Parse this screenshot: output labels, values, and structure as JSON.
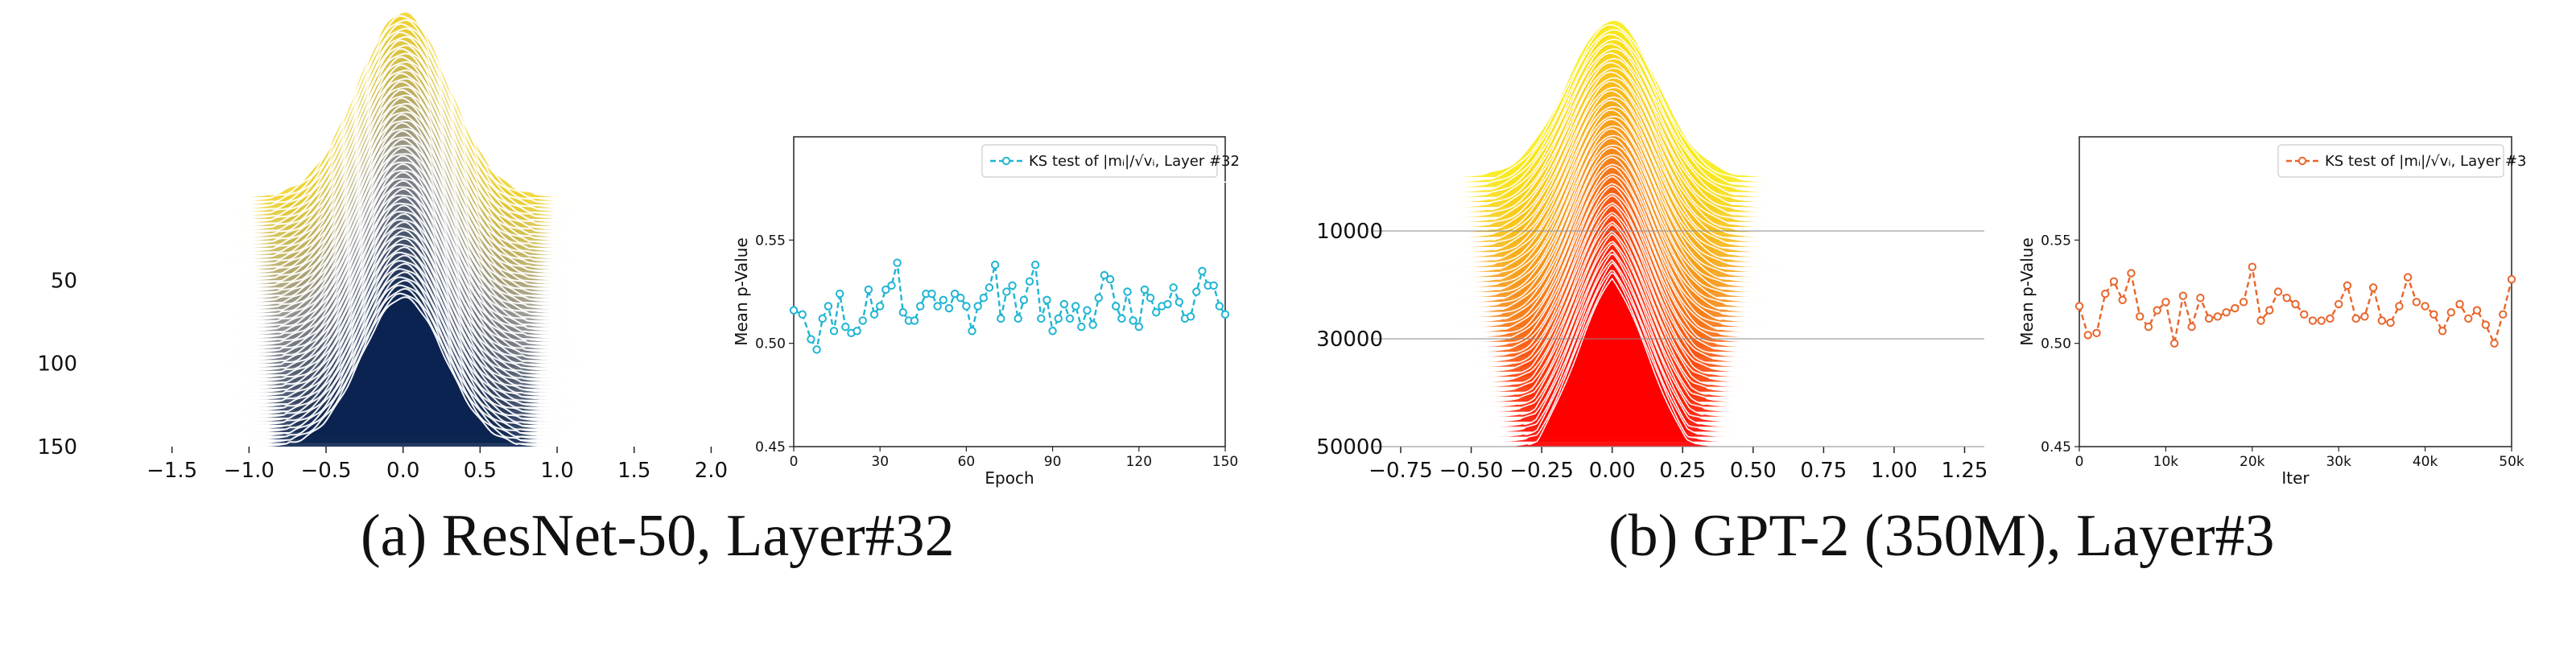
{
  "captions": {
    "a": "(a)  ResNet-50, Layer#32",
    "b": "(b)  GPT-2 (350M), Layer#3"
  },
  "chart_data": [
    {
      "id": "a-ridge",
      "type": "area",
      "description_kind": "ridgeline of stacked distributions",
      "x_ticks": [
        "−1.5",
        "−1.0",
        "−0.5",
        "0.0",
        "0.5",
        "1.0",
        "1.5",
        "2.0"
      ],
      "x_tick_values": [
        -1.5,
        -1.0,
        -0.5,
        0.0,
        0.5,
        1.0,
        1.5,
        2.0
      ],
      "xlim": [
        -2.0,
        2.05
      ],
      "y_ticks": [
        "50",
        "100",
        "150"
      ],
      "y_tick_values": [
        50,
        100,
        150
      ],
      "ylim": [
        0,
        150
      ],
      "colors": {
        "top": "#f2d42c",
        "middle": "#8e8e8e",
        "bottom": "#0b2350"
      }
    },
    {
      "id": "a-line",
      "type": "line",
      "legend": "KS test of |mᵢ|/√vᵢ, Layer #32",
      "legend_position": "top-right",
      "xlabel": "Epoch",
      "ylabel": "Mean p-Value",
      "x_ticks": [
        "0",
        "30",
        "60",
        "90",
        "120",
        "150"
      ],
      "x_tick_values": [
        0,
        30,
        60,
        90,
        120,
        150
      ],
      "y_ticks": [
        "0.45",
        "0.50",
        "0.55"
      ],
      "y_tick_values": [
        0.45,
        0.5,
        0.55
      ],
      "xlim": [
        0,
        150
      ],
      "ylim": [
        0.45,
        0.6
      ],
      "color": "#1fb5d3",
      "series": [
        {
          "x": [
            0,
            3,
            6,
            8,
            10,
            12,
            14,
            16,
            18,
            20,
            22,
            24,
            26,
            28,
            30,
            32,
            34,
            36,
            38,
            40,
            42,
            44,
            46,
            48,
            50,
            52,
            54,
            56,
            58,
            60,
            62,
            64,
            66,
            68,
            70,
            72,
            74,
            76,
            78,
            80,
            82,
            84,
            86,
            88,
            90,
            92,
            94,
            96,
            98,
            100,
            102,
            104,
            106,
            108,
            110,
            112,
            114,
            116,
            118,
            120,
            122,
            124,
            126,
            128,
            130,
            132,
            134,
            136,
            138,
            140,
            142,
            144,
            146,
            148,
            150
          ],
          "values": [
            0.516,
            0.514,
            0.502,
            0.497,
            0.512,
            0.518,
            0.506,
            0.524,
            0.508,
            0.505,
            0.506,
            0.511,
            0.526,
            0.514,
            0.518,
            0.526,
            0.528,
            0.539,
            0.515,
            0.511,
            0.511,
            0.518,
            0.524,
            0.524,
            0.518,
            0.521,
            0.517,
            0.524,
            0.522,
            0.518,
            0.506,
            0.518,
            0.522,
            0.527,
            0.538,
            0.512,
            0.525,
            0.528,
            0.512,
            0.521,
            0.53,
            0.538,
            0.512,
            0.521,
            0.506,
            0.512,
            0.519,
            0.512,
            0.518,
            0.508,
            0.516,
            0.509,
            0.522,
            0.533,
            0.531,
            0.518,
            0.512,
            0.525,
            0.511,
            0.508,
            0.526,
            0.522,
            0.515,
            0.518,
            0.519,
            0.527,
            0.52,
            0.512,
            0.513,
            0.525,
            0.535,
            0.528,
            0.528,
            0.518,
            0.514
          ]
        }
      ]
    },
    {
      "id": "b-ridge",
      "type": "area",
      "description_kind": "ridgeline of stacked distributions",
      "x_ticks": [
        "−0.75",
        "−0.50",
        "−0.25",
        "0.00",
        "0.25",
        "0.50",
        "0.75",
        "1.00",
        "1.25"
      ],
      "x_tick_values": [
        -0.75,
        -0.5,
        -0.25,
        0.0,
        0.25,
        0.5,
        0.75,
        1.0,
        1.25
      ],
      "xlim": [
        -0.85,
        1.32
      ],
      "y_ticks": [
        "10000",
        "30000",
        "50000"
      ],
      "y_tick_values": [
        10000,
        30000,
        50000
      ],
      "ylim": [
        0,
        50000
      ],
      "colors": {
        "top": "#f8ec1d",
        "middle": "#f5891c",
        "bottom": "#ff0000"
      }
    },
    {
      "id": "b-line",
      "type": "line",
      "legend": "KS test of |mᵢ|/√vᵢ, Layer #3",
      "legend_position": "top-right",
      "xlabel": "Iter",
      "ylabel": "Mean p-Value",
      "x_ticks": [
        "0",
        "10k",
        "20k",
        "30k",
        "40k",
        "50k"
      ],
      "x_tick_values": [
        0,
        10000,
        20000,
        30000,
        40000,
        50000
      ],
      "y_ticks": [
        "0.45",
        "0.50",
        "0.55"
      ],
      "y_tick_values": [
        0.45,
        0.5,
        0.55
      ],
      "xlim": [
        0,
        50000
      ],
      "ylim": [
        0.45,
        0.6
      ],
      "color": "#e8662c",
      "series": [
        {
          "x": [
            0,
            1000,
            2000,
            3000,
            4000,
            5000,
            6000,
            7000,
            8000,
            9000,
            10000,
            11000,
            12000,
            13000,
            14000,
            15000,
            16000,
            17000,
            18000,
            19000,
            20000,
            21000,
            22000,
            23000,
            24000,
            25000,
            26000,
            27000,
            28000,
            29000,
            30000,
            31000,
            32000,
            33000,
            34000,
            35000,
            36000,
            37000,
            38000,
            39000,
            40000,
            41000,
            42000,
            43000,
            44000,
            45000,
            46000,
            47000,
            48000,
            49000,
            50000
          ],
          "values": [
            0.518,
            0.504,
            0.505,
            0.524,
            0.53,
            0.521,
            0.534,
            0.513,
            0.508,
            0.516,
            0.52,
            0.5,
            0.523,
            0.508,
            0.522,
            0.512,
            0.513,
            0.515,
            0.517,
            0.52,
            0.537,
            0.511,
            0.516,
            0.525,
            0.522,
            0.519,
            0.514,
            0.511,
            0.511,
            0.512,
            0.519,
            0.528,
            0.512,
            0.513,
            0.527,
            0.511,
            0.51,
            0.518,
            0.532,
            0.52,
            0.518,
            0.514,
            0.506,
            0.515,
            0.519,
            0.512,
            0.516,
            0.509,
            0.5,
            0.514,
            0.531
          ]
        }
      ]
    }
  ]
}
